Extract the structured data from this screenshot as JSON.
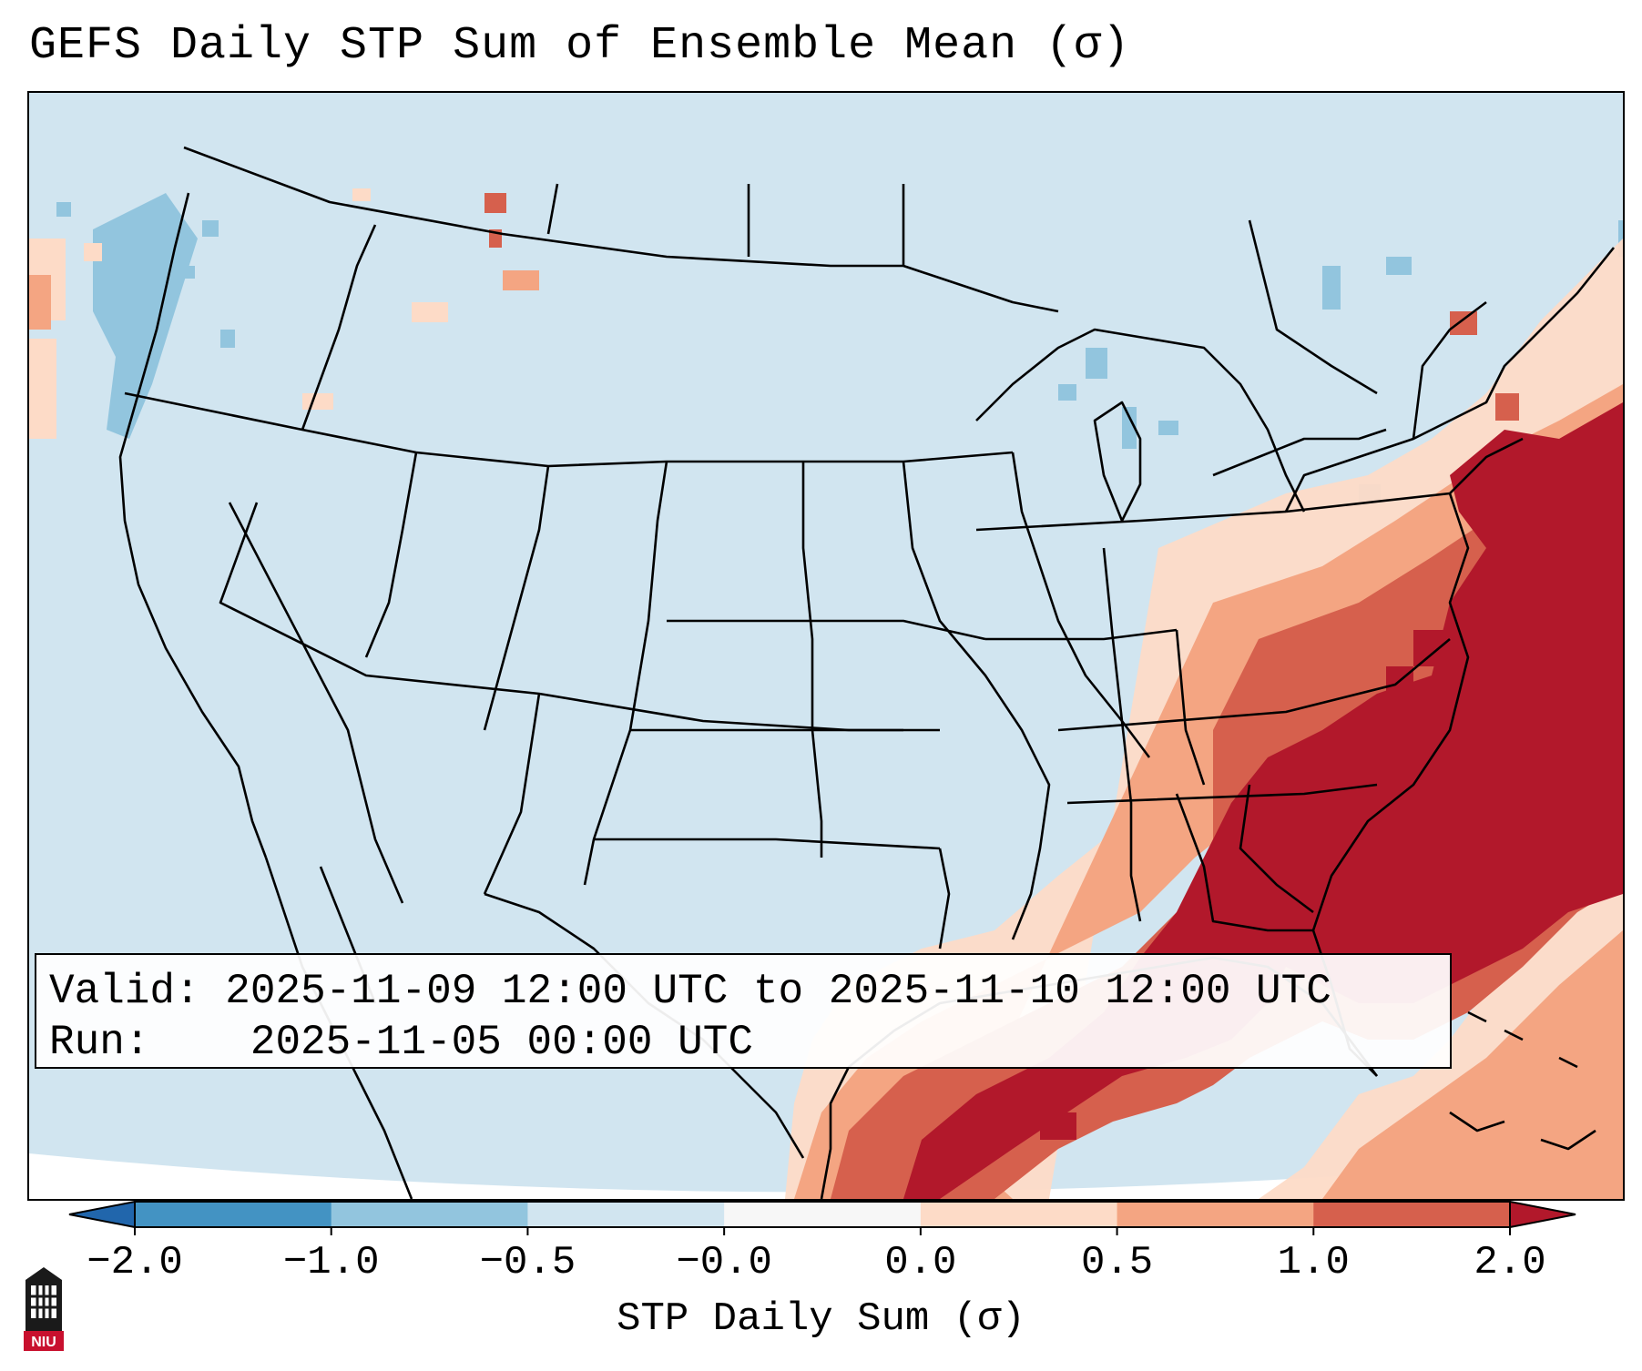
{
  "title": "GEFS Daily STP Sum of Ensemble Mean (σ)",
  "info": {
    "valid_label": "Valid:",
    "valid_value": "2025-11-09 12:00 UTC to 2025-11-10 12:00 UTC",
    "run_label": "Run:",
    "run_value": "2025-11-05 00:00 UTC"
  },
  "colorbar": {
    "label": "STP Daily Sum (σ)",
    "ticks": [
      "−2.0",
      "−1.0",
      "−0.5",
      "−0.0",
      "0.0",
      "0.5",
      "1.0",
      "2.0"
    ],
    "bins": [
      {
        "range": "< -2.0",
        "color": "#2166ac"
      },
      {
        "range": "-2.0 to -1.0",
        "color": "#4393c3"
      },
      {
        "range": "-1.0 to -0.5",
        "color": "#92c5de"
      },
      {
        "range": "-0.5 to -0.0",
        "color": "#d1e5f0"
      },
      {
        "range": "-0.0 to 0.0",
        "color": "#f7f7f7"
      },
      {
        "range": "0.0 to 0.5",
        "color": "#fddbc7"
      },
      {
        "range": "0.5 to 1.0",
        "color": "#f4a582"
      },
      {
        "range": "1.0 to 2.0",
        "color": "#d6604d"
      },
      {
        "range": "> 2.0",
        "color": "#b2182b"
      }
    ]
  },
  "map": {
    "region": "CONUS",
    "background_color": "#d1e5f0",
    "max_anomaly_region": "Southeast US, Carolinas, Georgia, Florida and western Atlantic",
    "moderate_anomaly_region": "Gulf of Mexico, Mid-Atlantic, Northeast",
    "negative_anomaly_region": "Pacific Northwest coast, Great Lakes"
  },
  "logo": {
    "text": "NIU"
  }
}
